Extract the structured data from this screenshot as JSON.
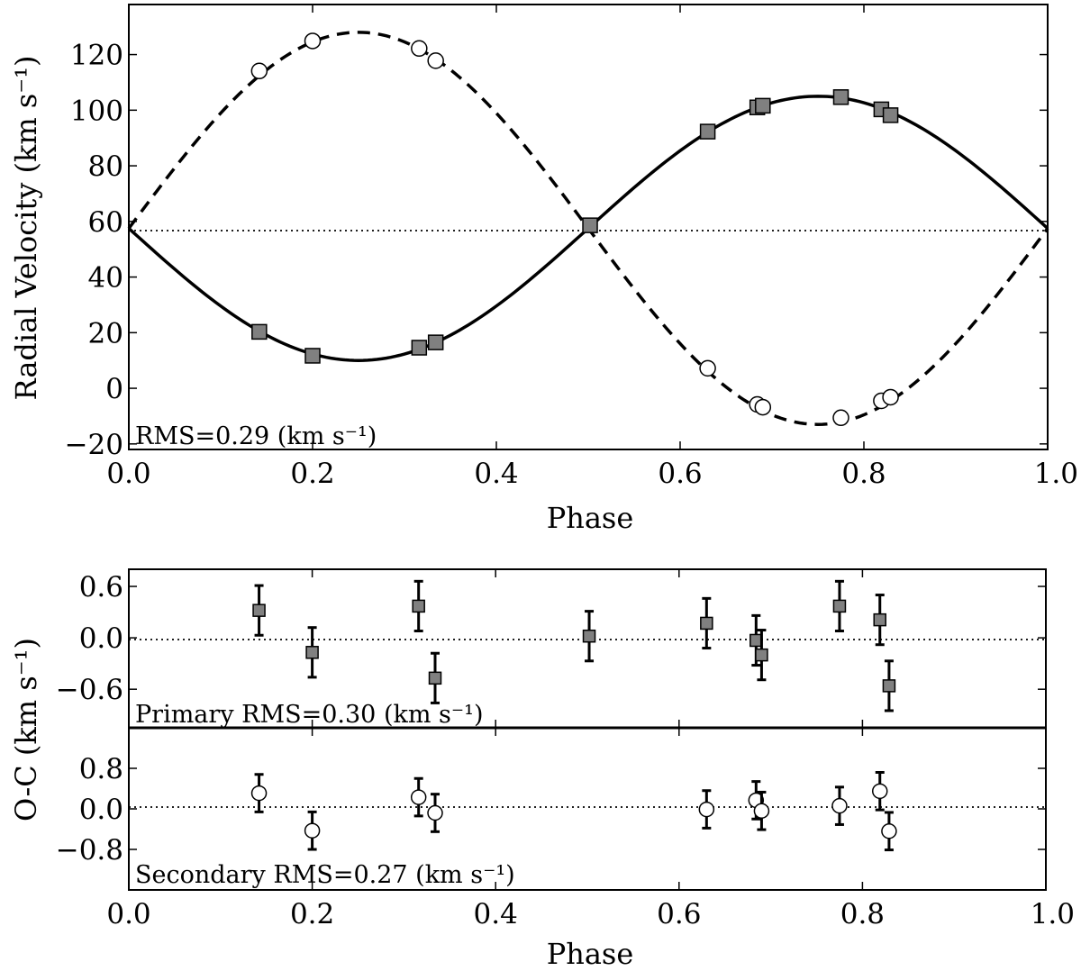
{
  "chart_data": [
    {
      "type": "scatter",
      "xlabel": "Phase",
      "ylabel": "Radial Velocity (km s⁻¹)",
      "xlim": [
        0.0,
        1.0
      ],
      "ylim": [
        -22,
        138
      ],
      "xticks": [
        "0.0",
        "0.2",
        "0.4",
        "0.6",
        "0.8",
        "1.0"
      ],
      "yticks": [
        "−20",
        "0",
        "20",
        "40",
        "60",
        "80",
        "100",
        "120"
      ],
      "systemic_velocity": 57.5,
      "annotation": "RMS=0.29 (km s⁻¹)",
      "models": [
        {
          "style": "solid",
          "gamma": 57.5,
          "K": 47.5,
          "sign": -1
        },
        {
          "style": "dashed",
          "gamma": 57.5,
          "K": 70.5,
          "sign": 1
        }
      ],
      "series": [
        {
          "marker": "square",
          "color": "#808080",
          "x": [
            0.142,
            0.2,
            0.316,
            0.334,
            0.502,
            0.63,
            0.684,
            0.69,
            0.775,
            0.819,
            0.829
          ],
          "y": [
            20.3,
            11.7,
            14.6,
            16.5,
            58.6,
            92.3,
            101.0,
            101.6,
            104.7,
            100.3,
            98.2
          ]
        },
        {
          "marker": "circle",
          "color": "#ffffff",
          "x": [
            0.142,
            0.2,
            0.316,
            0.334,
            0.63,
            0.684,
            0.69,
            0.775,
            0.819,
            0.829
          ],
          "y": [
            114.1,
            124.9,
            122.2,
            117.8,
            7.2,
            -5.8,
            -6.8,
            -10.6,
            -4.5,
            -3.2
          ]
        }
      ]
    },
    {
      "type": "scatter",
      "xlabel": "Phase",
      "ylabel": "O-C (km s⁻¹)",
      "xlim": [
        0.0,
        1.0
      ],
      "xticks": [
        "0.0",
        "0.2",
        "0.4",
        "0.6",
        "0.8",
        "1.0"
      ],
      "panels": [
        {
          "annotation": "Primary RMS=0.30 (km s⁻¹)",
          "ylim": [
            -1.05,
            0.8
          ],
          "yticks": [
            "−0.6",
            "0.0",
            "0.6"
          ],
          "marker": "square",
          "color": "#808080",
          "error": 0.29,
          "x": [
            0.142,
            0.2,
            0.316,
            0.334,
            0.502,
            0.63,
            0.684,
            0.69,
            0.775,
            0.819,
            0.829
          ],
          "y": [
            0.32,
            -0.17,
            0.37,
            -0.47,
            0.02,
            0.17,
            -0.03,
            -0.2,
            0.37,
            0.21,
            -0.56
          ]
        },
        {
          "annotation": "Secondary RMS=0.27 (km s⁻¹)",
          "ylim": [
            -1.6,
            1.6
          ],
          "yticks": [
            "−0.8",
            "0.0",
            "0.8"
          ],
          "marker": "circle",
          "color": "#ffffff",
          "error": 0.37,
          "x": [
            0.142,
            0.2,
            0.316,
            0.334,
            0.63,
            0.684,
            0.69,
            0.775,
            0.819,
            0.829
          ],
          "y": [
            0.31,
            -0.43,
            0.23,
            -0.08,
            -0.01,
            0.17,
            -0.04,
            0.06,
            0.35,
            -0.44
          ]
        }
      ]
    }
  ]
}
